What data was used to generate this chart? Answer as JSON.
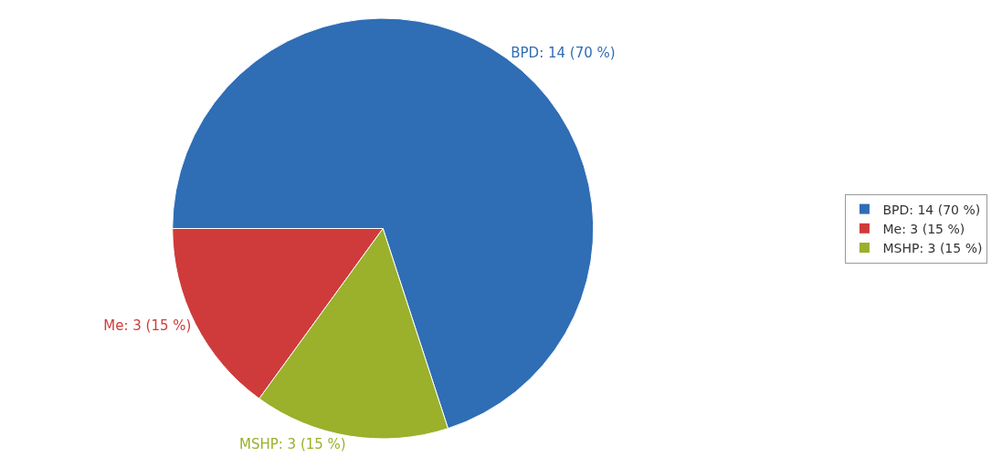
{
  "chart_data": {
    "type": "pie",
    "categories": [
      "BPD",
      "Me",
      "MSHP"
    ],
    "values": [
      14,
      3,
      3
    ],
    "colors": [
      "#2f6db5",
      "#cf3b3b",
      "#9bb02b"
    ],
    "value_labels": [
      "14 (70 %)",
      "3 (15 %)",
      "3 (15 %)"
    ],
    "legend": "right"
  }
}
